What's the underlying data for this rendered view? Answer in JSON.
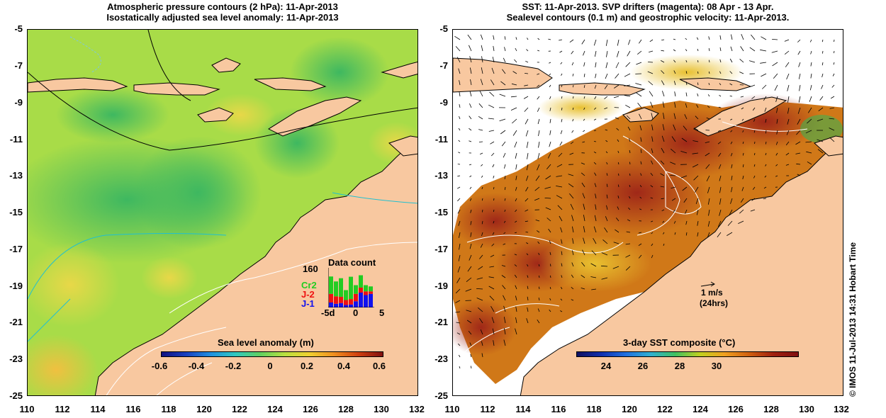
{
  "left_panel": {
    "title_line1": "Atmospheric pressure contours (2 hPa): 11-Apr-2013",
    "title_line2": "Isostatically adjusted sea level anomaly: 11-Apr-2013",
    "colorbar_title": "Sea level anomaly (m)",
    "colorbar_ticks": [
      "-0.6",
      "-0.4",
      "-0.2",
      "0",
      "0.2",
      "0.4",
      "0.6"
    ],
    "inset": {
      "title": "Data count",
      "ymax_label": "160",
      "legend": [
        {
          "label": "Cr2",
          "color": "#22cc22"
        },
        {
          "label": "J-2",
          "color": "#ee1111"
        },
        {
          "label": "J-1",
          "color": "#1111ee"
        }
      ],
      "x_ticks": [
        "-5d",
        "0",
        "5"
      ],
      "bars": [
        {
          "j1": 20,
          "j2": 35,
          "cr2": 70
        },
        {
          "j1": 15,
          "j2": 30,
          "cr2": 60
        },
        {
          "j1": 18,
          "j2": 25,
          "cr2": 75
        },
        {
          "j1": 10,
          "j2": 20,
          "cr2": 40
        },
        {
          "j1": 12,
          "j2": 22,
          "cr2": 90
        },
        {
          "j1": 25,
          "j2": 30,
          "cr2": 35
        },
        {
          "j1": 60,
          "j2": 20,
          "cr2": 50
        },
        {
          "j1": 50,
          "j2": 15,
          "cr2": 25
        },
        {
          "j1": 55,
          "j2": 10,
          "cr2": 20
        }
      ]
    }
  },
  "right_panel": {
    "title_line1": "SST: 11-Apr-2013. SVP drifters (magenta): 08 Apr - 13 Apr.",
    "title_line2": "Sealevel contours (0.1 m) and geostrophic velocity: 11-Apr-2013.",
    "colorbar_title": "3-day SST composite (°C)",
    "colorbar_ticks": [
      "24",
      "26",
      "28",
      "30"
    ],
    "scale_label": "1 m/s",
    "scale_sublabel": "(24hrs)"
  },
  "axes": {
    "y_ticks": [
      "-5",
      "-7",
      "-9",
      "-11",
      "-13",
      "-15",
      "-17",
      "-19",
      "-21",
      "-23",
      "-25"
    ],
    "x_ticks": [
      "110",
      "112",
      "114",
      "116",
      "118",
      "120",
      "122",
      "124",
      "126",
      "128",
      "130",
      "132"
    ]
  },
  "credit": "© IMOS 11-Jul-2013 14:31 Hobart Time",
  "colors": {
    "land": "#f8c8a0",
    "sla_low": "#1a3fb0",
    "sla_zero": "#a8e050",
    "sla_high": "#c02010",
    "sst_mid": "#e09020",
    "sst_high": "#a02010",
    "drifter": "#ff00ff"
  }
}
